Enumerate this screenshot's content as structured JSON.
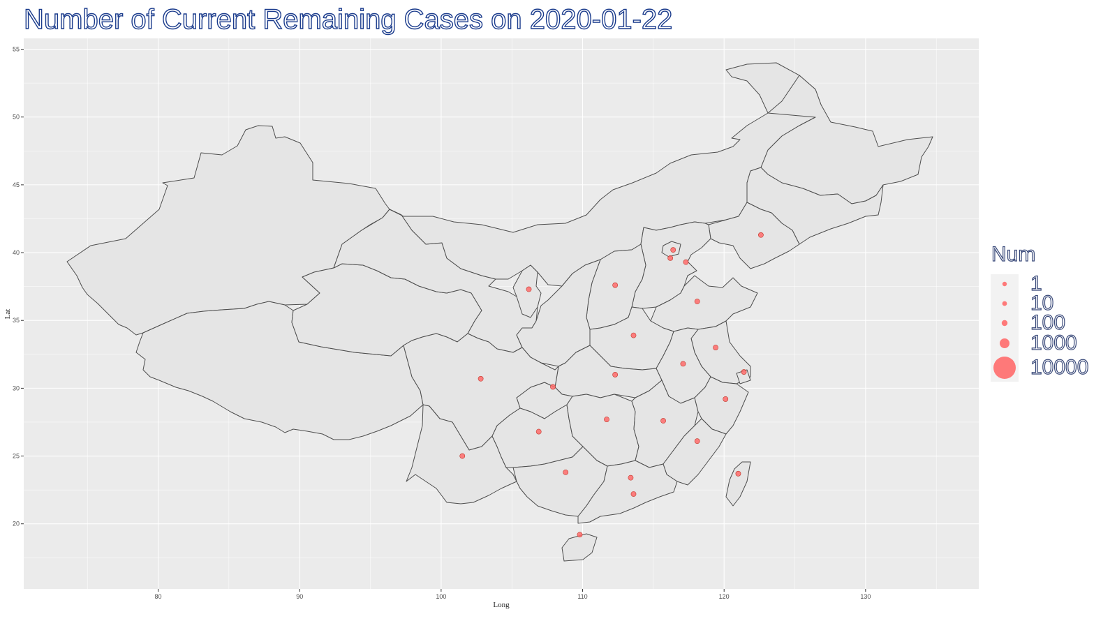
{
  "title": "Number of Current Remaining Cases on 2020-01-22",
  "chart_data": {
    "type": "scatter",
    "subtype": "bubble-map",
    "title": "Number of Current Remaining Cases on 2020-01-22",
    "xlabel": "Long",
    "ylabel": "Lat",
    "xlim": [
      70.5,
      138
    ],
    "ylim": [
      15.2,
      55.8
    ],
    "x_ticks": [
      "80",
      "90",
      "100",
      "110",
      "120",
      "130"
    ],
    "y_ticks": [
      "20",
      "25",
      "30",
      "35",
      "40",
      "45",
      "50",
      "55"
    ],
    "grid": true,
    "point_color": "#ff6b6b",
    "legend": {
      "title": "Num",
      "position": "right",
      "entries": [
        "1",
        "10",
        "100",
        "1000",
        "10000"
      ]
    },
    "points": [
      {
        "x": 122.6,
        "y": 41.3
      },
      {
        "x": 116.4,
        "y": 40.2
      },
      {
        "x": 116.2,
        "y": 39.6
      },
      {
        "x": 117.3,
        "y": 39.3
      },
      {
        "x": 106.2,
        "y": 37.3
      },
      {
        "x": 112.3,
        "y": 37.6
      },
      {
        "x": 118.1,
        "y": 36.4
      },
      {
        "x": 113.6,
        "y": 33.9
      },
      {
        "x": 119.4,
        "y": 33.0
      },
      {
        "x": 117.1,
        "y": 31.8
      },
      {
        "x": 121.4,
        "y": 31.2
      },
      {
        "x": 112.3,
        "y": 31.0
      },
      {
        "x": 102.8,
        "y": 30.7
      },
      {
        "x": 107.9,
        "y": 30.1
      },
      {
        "x": 120.1,
        "y": 29.2
      },
      {
        "x": 111.7,
        "y": 27.7
      },
      {
        "x": 115.7,
        "y": 27.6
      },
      {
        "x": 106.9,
        "y": 26.8
      },
      {
        "x": 118.1,
        "y": 26.1
      },
      {
        "x": 101.5,
        "y": 25.0
      },
      {
        "x": 108.8,
        "y": 23.8
      },
      {
        "x": 113.4,
        "y": 23.4
      },
      {
        "x": 121.0,
        "y": 23.7
      },
      {
        "x": 113.6,
        "y": 22.2
      },
      {
        "x": 109.8,
        "y": 19.2
      }
    ]
  }
}
